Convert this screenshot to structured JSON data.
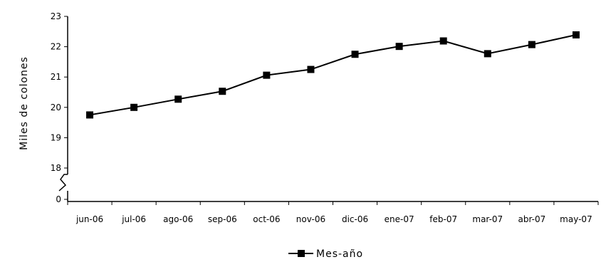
{
  "chart_data": {
    "type": "line",
    "title": "",
    "xlabel": "",
    "ylabel": "Miles de colones",
    "categories": [
      "jun-06",
      "jul-06",
      "ago-06",
      "sep-06",
      "oct-06",
      "nov-06",
      "dic-06",
      "ene-07",
      "feb-07",
      "mar-07",
      "abr-07",
      "may-07"
    ],
    "series": [
      {
        "name": "Mes-año",
        "values": [
          19.75,
          20.0,
          20.27,
          20.53,
          21.06,
          21.25,
          21.75,
          22.01,
          22.19,
          21.77,
          22.07,
          22.39
        ]
      }
    ],
    "ylim": [
      18,
      23
    ],
    "axis_break": {
      "from": 0,
      "to": 18
    },
    "y_ticks": [
      "0",
      "18",
      "19",
      "20",
      "21",
      "22",
      "23"
    ],
    "grid": false,
    "legend_position": "bottom",
    "marker": "square",
    "line_color": "#000000"
  }
}
